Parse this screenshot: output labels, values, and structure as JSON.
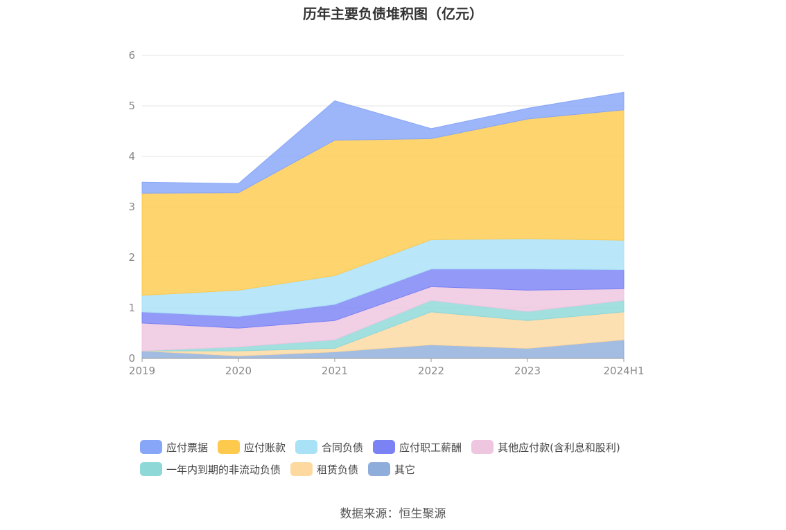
{
  "chart_data": {
    "type": "area",
    "stacked": true,
    "title": "历年主要负债堆积图（亿元）",
    "categories": [
      "2019",
      "2020",
      "2021",
      "2022",
      "2023",
      "2024H1"
    ],
    "ylim": [
      0,
      6
    ],
    "yticks": [
      "0",
      "1",
      "2",
      "3",
      "4",
      "5",
      "6"
    ],
    "grid": true,
    "legend_position": "bottom",
    "series": [
      {
        "name": "其它",
        "color": "#8fadda",
        "values": [
          0.15,
          0.05,
          0.13,
          0.27,
          0.2,
          0.37
        ]
      },
      {
        "name": "租赁负债",
        "color": "#fdd9a0",
        "values": [
          0.0,
          0.1,
          0.07,
          0.65,
          0.55,
          0.55
        ]
      },
      {
        "name": "一年内到期的非流动负债",
        "color": "#8ed8d8",
        "values": [
          0.0,
          0.08,
          0.17,
          0.23,
          0.18,
          0.23
        ]
      },
      {
        "name": "其他应付款(含利息和股利)",
        "color": "#eec6e0",
        "values": [
          0.55,
          0.37,
          0.38,
          0.27,
          0.42,
          0.23
        ]
      },
      {
        "name": "应付职工薪酬",
        "color": "#7b82f4",
        "values": [
          0.22,
          0.23,
          0.32,
          0.35,
          0.42,
          0.38
        ]
      },
      {
        "name": "合同负债",
        "color": "#a9e1f6",
        "values": [
          0.33,
          0.52,
          0.57,
          0.58,
          0.6,
          0.58
        ]
      },
      {
        "name": "应付账款",
        "color": "#fdca4e",
        "values": [
          2.02,
          1.93,
          2.68,
          2.0,
          2.37,
          2.58
        ]
      },
      {
        "name": "应付票据",
        "color": "#88a6f8",
        "values": [
          0.22,
          0.18,
          0.78,
          0.2,
          0.21,
          0.35
        ]
      }
    ]
  },
  "legend": {
    "row1": [
      "应付票据",
      "应付账款",
      "合同负债",
      "应付职工薪酬",
      "其他应付款(含利息和股利)"
    ],
    "row2": [
      "一年内到期的非流动负债",
      "租赁负债",
      "其它"
    ],
    "colors": {
      "应付票据": "#88a6f8",
      "应付账款": "#fdca4e",
      "合同负债": "#a9e1f6",
      "应付职工薪酬": "#7b82f4",
      "其他应付款(含利息和股利)": "#eec6e0",
      "一年内到期的非流动负债": "#8ed8d8",
      "租赁负债": "#fdd9a0",
      "其它": "#8fadda"
    }
  },
  "source": "数据来源：恒生聚源"
}
